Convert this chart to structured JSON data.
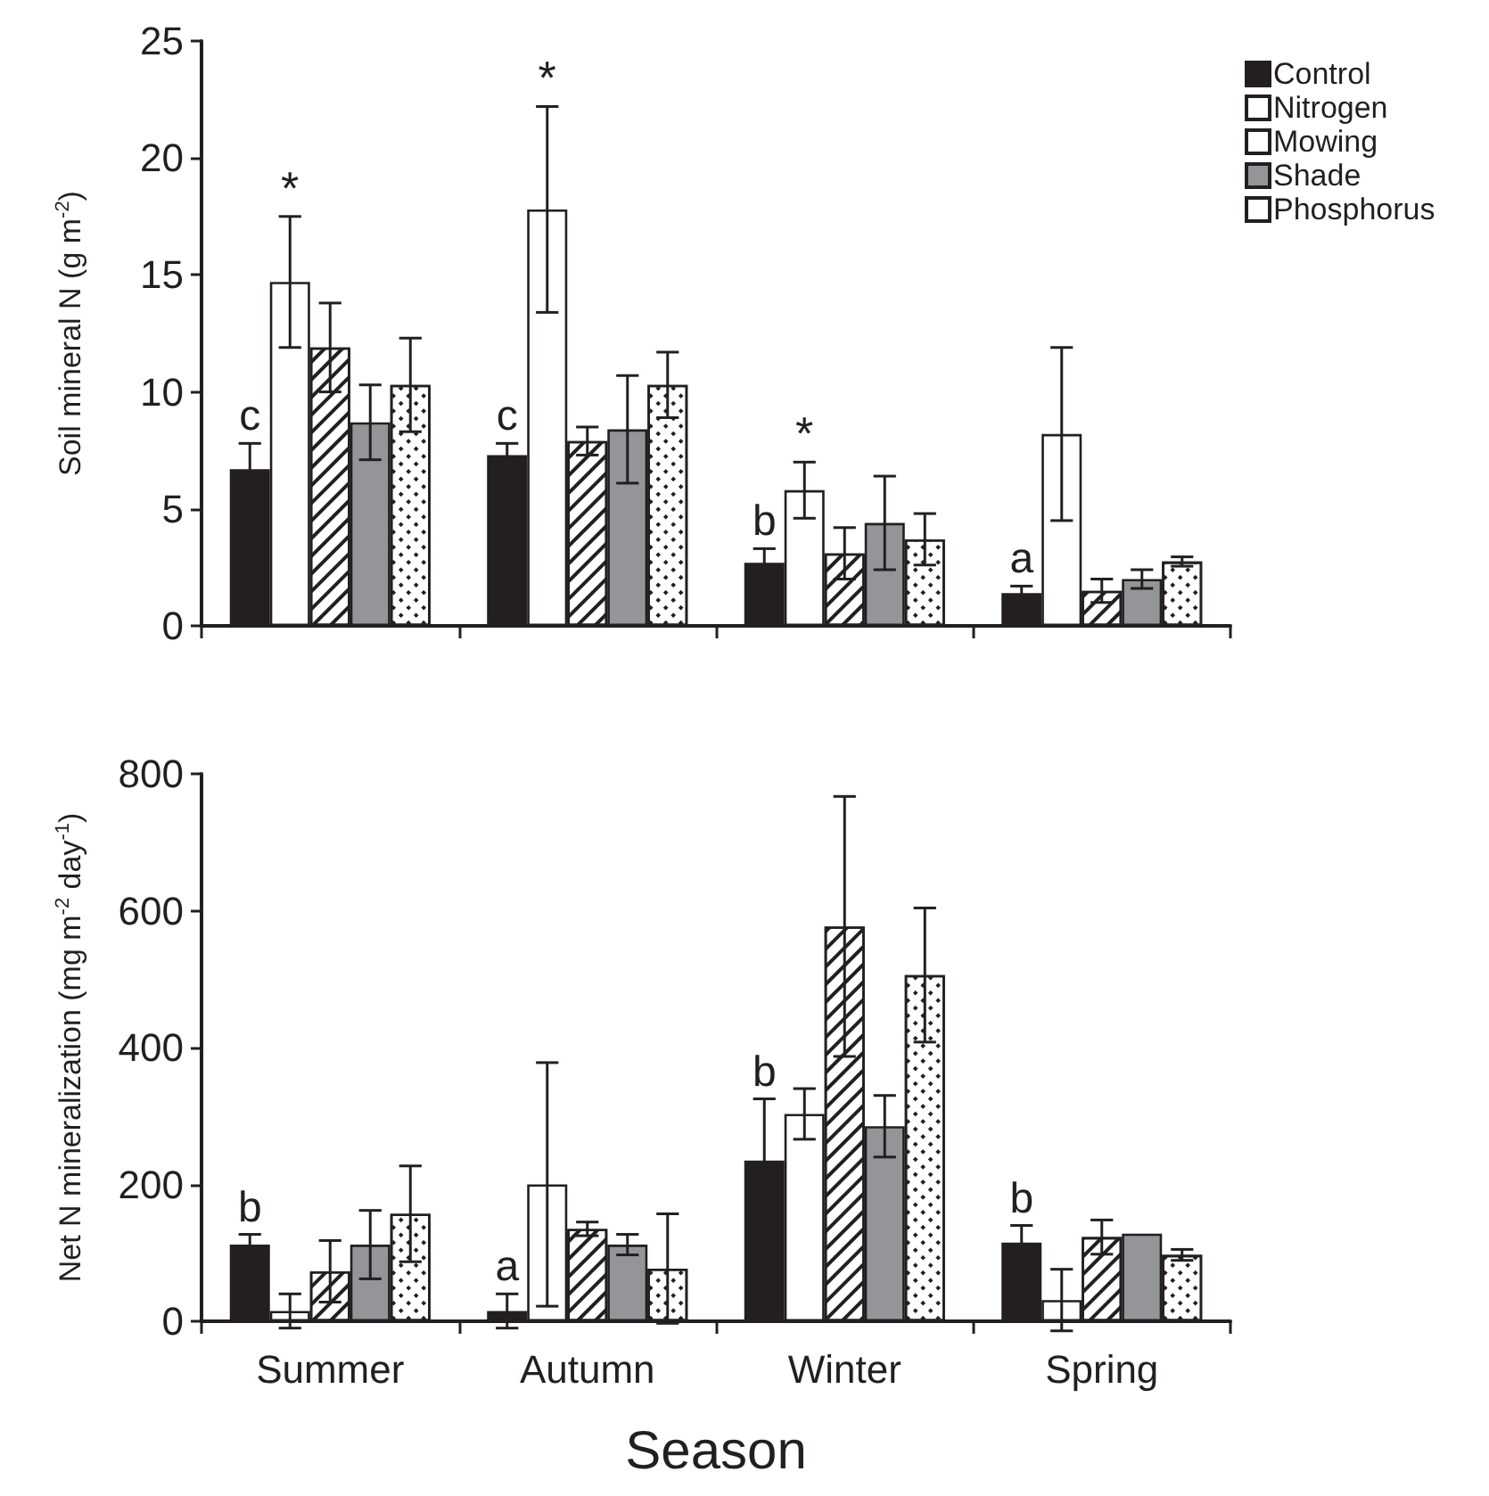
{
  "chart_data": [
    {
      "type": "bar",
      "ylabel": "Soil mineral N (g m$^{-2}$)",
      "categories": [
        null,
        null,
        null,
        null
      ],
      "ylim": [
        0,
        25
      ],
      "yticks": [
        0,
        5,
        10,
        15,
        20,
        25
      ],
      "tick_labels": "y",
      "grid": false,
      "legend": "top right",
      "series": [
        {
          "name": "Control",
          "color": "#231f20",
          "values": [
            6.7,
            7.3,
            2.7,
            1.4
          ],
          "errors": [
            1.1,
            0.5,
            0.6,
            0.3
          ],
          "value_labels": [
            "c",
            "c",
            "b",
            "a"
          ]
        },
        {
          "name": "Nitrogen",
          "color": "#ffffff",
          "values": [
            14.7,
            17.8,
            5.8,
            8.2
          ],
          "errors": [
            2.8,
            4.4,
            1.2,
            3.7
          ],
          "value_labels": [
            "*",
            "*",
            "*",
            null
          ]
        },
        {
          "name": "Mowing",
          "color": "#ffffff",
          "values": [
            11.9,
            7.9,
            3.1,
            1.5
          ],
          "errors": [
            1.9,
            0.6,
            1.1,
            0.5
          ]
        },
        {
          "name": "Shade",
          "color": "#939598",
          "values": [
            8.7,
            8.4,
            4.4,
            2.0
          ],
          "errors": [
            1.6,
            2.3,
            2.0,
            0.4
          ]
        },
        {
          "name": "Phosphorus",
          "color": "#ffffff",
          "values": [
            10.3,
            10.3,
            3.7,
            2.75
          ],
          "errors": [
            2.0,
            1.4,
            1.1,
            0.2
          ]
        }
      ]
    },
    {
      "type": "bar",
      "ylabel": "Net N mineralization (mg m$^{-2}$ day$^{-1}$)",
      "xlabel": "Season",
      "categories": [
        "Summer",
        "Autumn",
        "Winter",
        "Spring"
      ],
      "ylim": [
        0,
        800
      ],
      "yticks": [
        0,
        200,
        400,
        600,
        800
      ],
      "grid": false,
      "legend": false,
      "series": [
        {
          "color": "#231f20",
          "values": [
            112,
            15,
            235,
            115
          ],
          "errors": [
            15,
            25,
            90,
            25
          ],
          "value_labels": [
            "b",
            "a",
            "b",
            "b"
          ]
        },
        {
          "color": "#ffffff",
          "values": [
            15,
            200,
            303,
            31
          ],
          "errors": [
            25,
            178,
            37,
            45
          ]
        },
        {
          "color": "#ffffff",
          "values": [
            73,
            135,
            577,
            123
          ],
          "errors": [
            45,
            10,
            190,
            25
          ]
        },
        {
          "color": "#939598",
          "values": [
            112,
            112,
            285,
            128
          ],
          "errors": [
            50,
            15,
            45,
            null
          ]
        },
        {
          "color": "#ffffff",
          "values": [
            157,
            77,
            506,
            97
          ],
          "errors": [
            70,
            80,
            98,
            8
          ]
        }
      ]
    }
  ]
}
